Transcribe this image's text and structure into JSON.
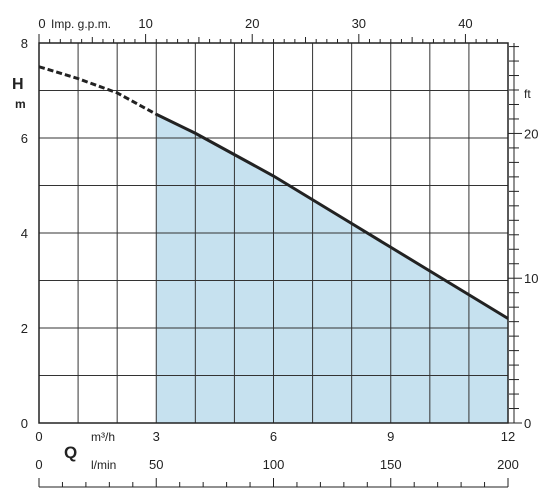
{
  "chart_data": {
    "type": "area",
    "title": "",
    "y_axis": {
      "label": "H",
      "unit": "m",
      "range": [
        0,
        8
      ],
      "ticks": [
        0,
        2,
        4,
        6,
        8
      ]
    },
    "y2_axis": {
      "unit": "ft",
      "ticks": [
        0,
        10,
        20
      ]
    },
    "x_axis": {
      "label": "Q",
      "unit": "m³/h",
      "range": [
        0,
        12
      ],
      "ticks": [
        0,
        3,
        6,
        9,
        12
      ]
    },
    "x_axis_top": {
      "unit": "Imp. g.p.m.",
      "ticks": [
        0,
        10,
        20,
        30,
        40
      ]
    },
    "x_axis_bottom": {
      "unit": "l/min",
      "ticks": [
        0,
        50,
        100,
        150,
        200
      ]
    },
    "grid": true,
    "series": [
      {
        "x": [
          0,
          1,
          2,
          3,
          4,
          5,
          6,
          7,
          8,
          9,
          10,
          11,
          12
        ],
        "y": [
          7.5,
          7.25,
          6.95,
          6.5,
          6.1,
          5.65,
          5.2,
          4.7,
          4.2,
          3.7,
          3.2,
          2.7,
          2.2
        ],
        "operating_range_x": [
          3,
          12
        ],
        "dashed_below_x": 3,
        "color": "#222222",
        "fill_color": "#c6e1ef"
      }
    ]
  }
}
